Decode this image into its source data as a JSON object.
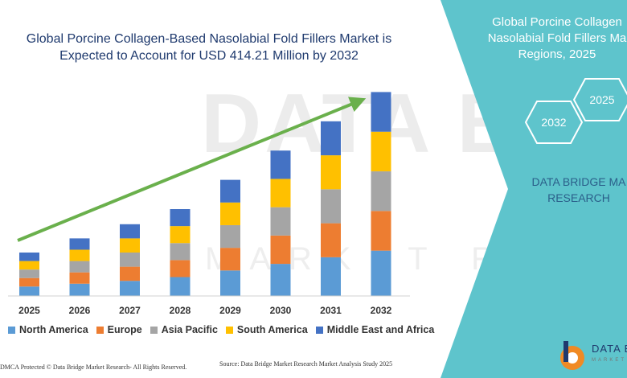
{
  "title": {
    "line1": "Global Porcine Collagen-Based Nasolabial Fold Fillers Market is",
    "line2": "Expected to Account for USD 414.21 Million by 2032"
  },
  "watermark": {
    "main": "DATA BRIDGE",
    "sub": "MARKET RESEARCH"
  },
  "side_panel": {
    "title_line1": "Global Porcine Collagen",
    "title_line2": "Nasolabial Fold Fillers Ma",
    "title_line3": "Regions, 2025",
    "hex_year_1": "2025",
    "hex_year_2": "2032",
    "brand_line1": "DATA BRIDGE MA",
    "brand_line2": "RESEARCH",
    "background_color": "#5ec4cc"
  },
  "footer": {
    "left": "DMCA Protected © Data Bridge Market Research- All Rights Reserved.",
    "source": "Source: Data Bridge Market Research Market Analysis Study 2025"
  },
  "logo": {
    "name": "DATA B",
    "sub": "MARKET"
  },
  "legend": [
    {
      "name": "North America",
      "color": "#5b9bd5"
    },
    {
      "name": "Europe",
      "color": "#ed7d31"
    },
    {
      "name": "Asia Pacific",
      "color": "#a5a5a5"
    },
    {
      "name": "South America",
      "color": "#ffc000"
    },
    {
      "name": "Middle East and Africa",
      "color": "#4472c4"
    }
  ],
  "chart_data": {
    "type": "bar",
    "stacked": true,
    "categories": [
      "2025",
      "2026",
      "2027",
      "2028",
      "2029",
      "2030",
      "2031",
      "2032"
    ],
    "series": [
      {
        "name": "North America",
        "color": "#5b9bd5",
        "values": [
          10,
          13,
          16,
          20,
          27,
          34,
          41,
          48
        ]
      },
      {
        "name": "Europe",
        "color": "#ed7d31",
        "values": [
          9,
          12,
          15,
          18,
          24,
          30,
          36,
          42
        ]
      },
      {
        "name": "Asia Pacific",
        "color": "#a5a5a5",
        "values": [
          9,
          12,
          15,
          18,
          24,
          30,
          36,
          42
        ]
      },
      {
        "name": "South America",
        "color": "#ffc000",
        "values": [
          9,
          12,
          15,
          18,
          24,
          30,
          36,
          42
        ]
      },
      {
        "name": "Middle East and Africa",
        "color": "#4472c4",
        "values": [
          9,
          12,
          15,
          18,
          24,
          30,
          36,
          42
        ]
      }
    ],
    "ylim": [
      0,
      230
    ],
    "grid": false,
    "legend_position": "bottom",
    "trend_arrow": true,
    "trend_color": "#6ab04c"
  }
}
